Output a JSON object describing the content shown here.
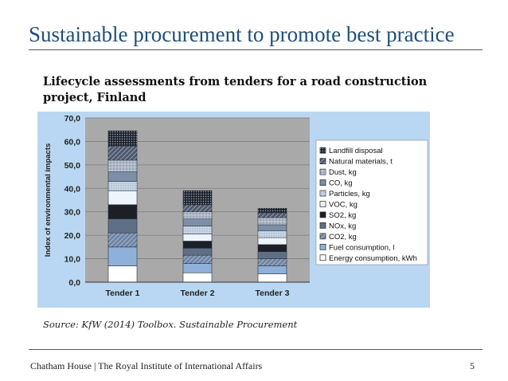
{
  "slide": {
    "title": "Sustainable procurement to promote best practice",
    "source": "Source: KfW (2014) Toolbox. Sustainable Procurement",
    "footer": "Chatham House | The Royal Institute of International Affairs",
    "page_number": "5"
  },
  "chart_data": {
    "type": "bar",
    "stacked": true,
    "title": "Lifecycle assessments from tenders for a road construction project, Finland",
    "ylabel": "Index of environmental impacts",
    "xlabel": "",
    "ylim": [
      0,
      70
    ],
    "yticks": [
      "0,0",
      "10,0",
      "20,0",
      "30,0",
      "40,0",
      "50,0",
      "60,0",
      "70,0"
    ],
    "categories": [
      "Tender 1",
      "Tender 2",
      "Tender 3"
    ],
    "legend_position": "right",
    "grid": true,
    "colors": {
      "plot_background": "#a9a9a9",
      "figure_background": "#b9d7f2",
      "legend_background": "#ffffff"
    },
    "series": [
      {
        "name": "Energy consumption, kWh",
        "values": [
          7,
          4,
          3.5
        ],
        "color": "#ffffff",
        "pattern": "solid"
      },
      {
        "name": "Fuel consumption, l",
        "values": [
          8,
          4,
          3.5
        ],
        "color": "#8fb1d9",
        "pattern": "solid"
      },
      {
        "name": "CO2, kg",
        "values": [
          6,
          3.5,
          3
        ],
        "color": "#6f85a6",
        "pattern": "hatch"
      },
      {
        "name": "NOx, kg",
        "values": [
          6,
          3,
          3
        ],
        "color": "#5f6f86",
        "pattern": "solid"
      },
      {
        "name": "SO2, kg",
        "values": [
          6,
          3,
          3
        ],
        "color": "#1c1f26",
        "pattern": "solid"
      },
      {
        "name": "VOC, kg",
        "values": [
          6,
          3,
          3
        ],
        "color": "#eef4fb",
        "pattern": "solid"
      },
      {
        "name": "Particles, kg",
        "values": [
          4,
          3.5,
          3
        ],
        "color": "#b8c9dc",
        "pattern": "dots"
      },
      {
        "name": "CO, kg",
        "values": [
          4,
          3,
          2.5
        ],
        "color": "#7d8fa8",
        "pattern": "solid"
      },
      {
        "name": "Dust, kg",
        "values": [
          5,
          3,
          3
        ],
        "color": "#9aa7b8",
        "pattern": "crosshatch"
      },
      {
        "name": "Natural materials, t",
        "values": [
          6,
          3,
          2
        ],
        "color": "#4d5a70",
        "pattern": "hatch"
      },
      {
        "name": "Landfill disposal",
        "values": [
          6.5,
          6,
          2
        ],
        "color": "#1e2530",
        "pattern": "dots"
      }
    ]
  }
}
